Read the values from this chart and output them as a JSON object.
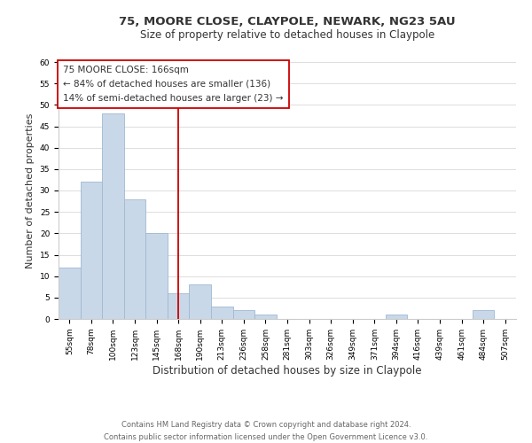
{
  "title": "75, MOORE CLOSE, CLAYPOLE, NEWARK, NG23 5AU",
  "subtitle": "Size of property relative to detached houses in Claypole",
  "xlabel": "Distribution of detached houses by size in Claypole",
  "ylabel": "Number of detached properties",
  "bar_labels": [
    "55sqm",
    "78sqm",
    "100sqm",
    "123sqm",
    "145sqm",
    "168sqm",
    "190sqm",
    "213sqm",
    "236sqm",
    "258sqm",
    "281sqm",
    "303sqm",
    "326sqm",
    "349sqm",
    "371sqm",
    "394sqm",
    "416sqm",
    "439sqm",
    "461sqm",
    "484sqm",
    "507sqm"
  ],
  "bar_values": [
    12,
    32,
    48,
    28,
    20,
    6,
    8,
    3,
    2,
    1,
    0,
    0,
    0,
    0,
    0,
    1,
    0,
    0,
    0,
    2,
    0
  ],
  "bar_color": "#c8d8e8",
  "bar_edge_color": "#a0b8d0",
  "vline_x": 5,
  "vline_color": "#cc0000",
  "ylim": [
    0,
    60
  ],
  "yticks": [
    0,
    5,
    10,
    15,
    20,
    25,
    30,
    35,
    40,
    45,
    50,
    55,
    60
  ],
  "annotation_title": "75 MOORE CLOSE: 166sqm",
  "annotation_line1": "← 84% of detached houses are smaller (136)",
  "annotation_line2": "14% of semi-detached houses are larger (23) →",
  "annotation_box_color": "#ffffff",
  "annotation_box_edge": "#cc0000",
  "footer_line1": "Contains HM Land Registry data © Crown copyright and database right 2024.",
  "footer_line2": "Contains public sector information licensed under the Open Government Licence v3.0.",
  "title_fontsize": 9.5,
  "subtitle_fontsize": 8.5,
  "ylabel_fontsize": 8,
  "xlabel_fontsize": 8.5,
  "tick_fontsize": 6.5,
  "annotation_fontsize": 7.5,
  "footer_fontsize": 6
}
